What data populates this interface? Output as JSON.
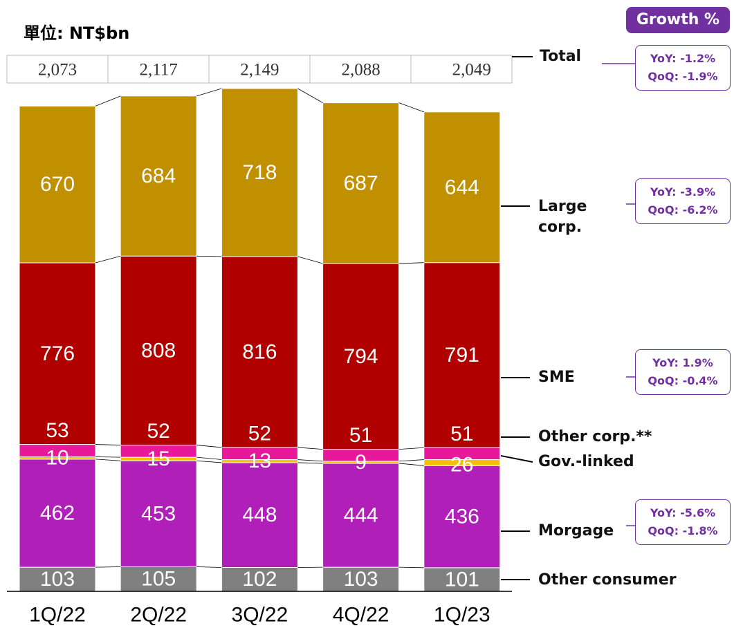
{
  "chart_data": {
    "type": "stacked_bar",
    "unit": "單位: NT$bn",
    "categories": [
      "1Q/22",
      "2Q/22",
      "3Q/22",
      "4Q/22",
      "1Q/23"
    ],
    "growth_title": "Growth %",
    "total": {
      "name": "Total",
      "values": [
        2073,
        2117,
        2149,
        2088,
        2049
      ],
      "value_labels": [
        "2,073",
        "2,117",
        "2,149",
        "2,088",
        "2,049"
      ],
      "growth": [
        "YoY: -1.2%",
        "QoQ: -1.9%"
      ]
    },
    "series": [
      {
        "name": "Other consumer",
        "color": "#808080",
        "values": [
          103,
          105,
          102,
          103,
          101
        ]
      },
      {
        "name": "Morgage",
        "color": "#b020b8",
        "values": [
          462,
          453,
          448,
          444,
          436
        ],
        "growth": [
          "YoY: -5.6%",
          "QoQ: -1.8%"
        ]
      },
      {
        "name": "Gov.-linked",
        "color": "#f5c000",
        "values": [
          10,
          15,
          13,
          9,
          26
        ]
      },
      {
        "name": "Other corp.**",
        "color": "#e8189a",
        "values": [
          53,
          52,
          52,
          51,
          51
        ]
      },
      {
        "name": "SME",
        "color": "#b00000",
        "values": [
          776,
          808,
          816,
          794,
          791
        ],
        "growth": [
          "YoY: 1.9%",
          "QoQ: -0.4%"
        ]
      },
      {
        "name": "Large corp.",
        "color": "#c09000",
        "values": [
          670,
          684,
          718,
          687,
          644
        ],
        "growth": [
          "YoY: -3.9%",
          "QoQ: -6.2%"
        ]
      }
    ]
  }
}
